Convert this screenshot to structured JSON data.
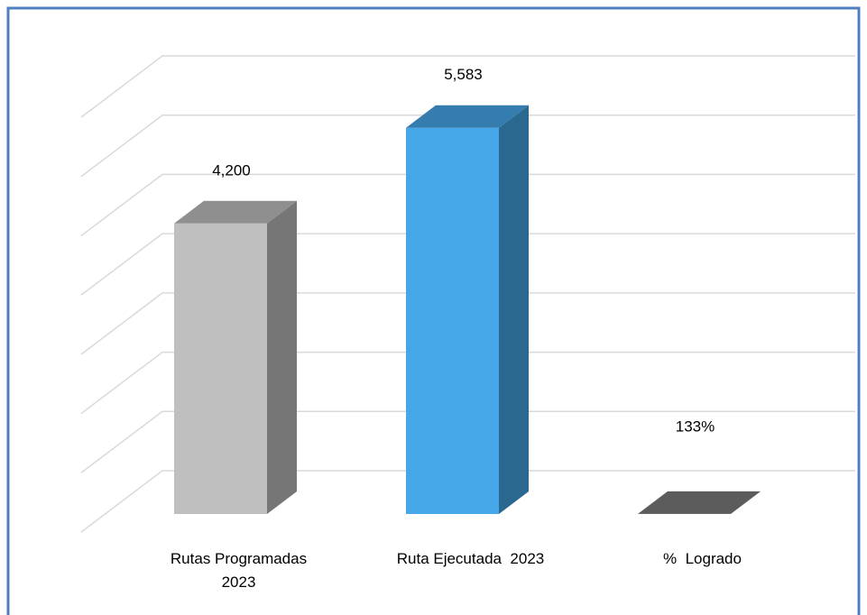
{
  "chart_data": {
    "type": "bar3d",
    "categories": [
      "Rutas Programadas 2023",
      "Ruta Ejecutada  2023",
      "%  Logrado"
    ],
    "values": [
      4200,
      5583,
      1.33
    ],
    "value_labels": [
      "4,200",
      "5,583",
      "133%"
    ],
    "colors": [
      "#bfbfbf",
      "#45a7e8",
      "#7a7a7a"
    ],
    "ylim": [
      0,
      7000
    ],
    "yticks": [
      0,
      1000,
      2000,
      3000,
      4000,
      5000,
      6000,
      7000
    ],
    "grid": true
  }
}
